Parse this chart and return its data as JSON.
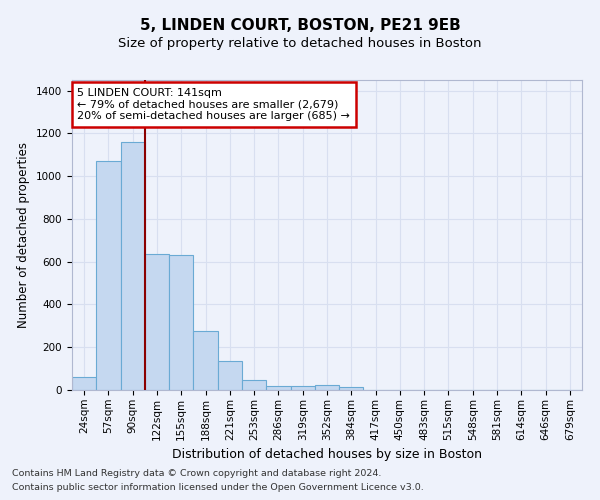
{
  "title1": "5, LINDEN COURT, BOSTON, PE21 9EB",
  "title2": "Size of property relative to detached houses in Boston",
  "xlabel": "Distribution of detached houses by size in Boston",
  "ylabel": "Number of detached properties",
  "categories": [
    "24sqm",
    "57sqm",
    "90sqm",
    "122sqm",
    "155sqm",
    "188sqm",
    "221sqm",
    "253sqm",
    "286sqm",
    "319sqm",
    "352sqm",
    "384sqm",
    "417sqm",
    "450sqm",
    "483sqm",
    "515sqm",
    "548sqm",
    "581sqm",
    "614sqm",
    "646sqm",
    "679sqm"
  ],
  "values": [
    62,
    1072,
    1158,
    635,
    632,
    278,
    135,
    45,
    20,
    20,
    25,
    15,
    0,
    0,
    0,
    0,
    0,
    0,
    0,
    0,
    0
  ],
  "bar_color": "#c5d8f0",
  "bar_edge_color": "#6aaad4",
  "vline_x": 2.5,
  "vline_color": "#8b0000",
  "annotation_text": "5 LINDEN COURT: 141sqm\n← 79% of detached houses are smaller (2,679)\n20% of semi-detached houses are larger (685) →",
  "annotation_box_color": "#ffffff",
  "annotation_box_edge_color": "#cc0000",
  "ylim": [
    0,
    1450
  ],
  "yticks": [
    0,
    200,
    400,
    600,
    800,
    1000,
    1200,
    1400
  ],
  "footer1": "Contains HM Land Registry data © Crown copyright and database right 2024.",
  "footer2": "Contains public sector information licensed under the Open Government Licence v3.0.",
  "background_color": "#eef2fb",
  "grid_color": "#d8dff0",
  "title1_fontsize": 11,
  "title2_fontsize": 9.5,
  "xlabel_fontsize": 9,
  "ylabel_fontsize": 8.5,
  "tick_fontsize": 7.5,
  "annotation_fontsize": 8,
  "footer_fontsize": 6.8
}
